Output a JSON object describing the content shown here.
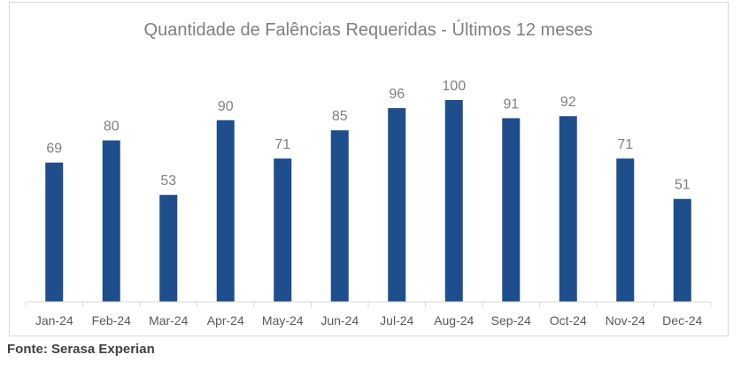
{
  "chart_data": {
    "type": "bar",
    "title": "Quantidade de Falências Requeridas - Últimos 12 meses",
    "categories": [
      "Jan-24",
      "Feb-24",
      "Mar-24",
      "Apr-24",
      "May-24",
      "Jun-24",
      "Jul-24",
      "Aug-24",
      "Sep-24",
      "Oct-24",
      "Nov-24",
      "Dec-24"
    ],
    "values": [
      69,
      80,
      53,
      90,
      71,
      85,
      96,
      100,
      91,
      92,
      71,
      51
    ],
    "xlabel": "",
    "ylabel": "",
    "ylim": [
      0,
      100
    ],
    "grid": false,
    "legend": "none",
    "bar_color": "#1f4e8c",
    "label_color": "#7f7f7f"
  },
  "source_note": "Fonte: Serasa Experian"
}
